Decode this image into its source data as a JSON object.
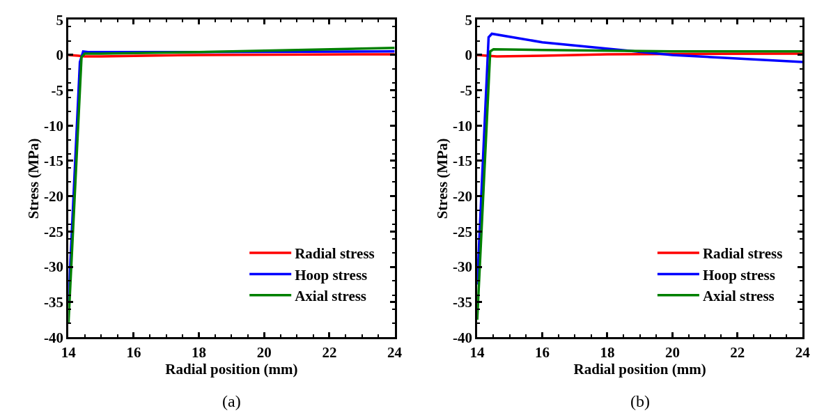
{
  "chart_data": [
    {
      "type": "line",
      "xlabel": "Radial position (mm)",
      "ylabel": "Stress (MPa)",
      "xlim": [
        14,
        24
      ],
      "xticks": [
        14,
        16,
        18,
        20,
        22,
        24
      ],
      "ylim": [
        -40,
        5
      ],
      "yticks": [
        -40,
        -35,
        -30,
        -25,
        -20,
        -15,
        -10,
        -5,
        0,
        5
      ],
      "legend": "bottom right",
      "grid": false,
      "annotations": [
        "(a)"
      ],
      "series": [
        {
          "name": "Radial stress",
          "color": "#ff0000",
          "x": [
            14,
            14.3,
            14.5,
            15,
            18,
            24
          ],
          "values": [
            0,
            -0.1,
            -0.2,
            -0.2,
            0,
            0.1
          ]
        },
        {
          "name": "Hoop stress",
          "color": "#0000ff",
          "x": [
            14,
            14.35,
            14.45,
            14.6,
            18,
            24
          ],
          "values": [
            -35,
            -1,
            0.5,
            0.4,
            0.4,
            0.5
          ]
        },
        {
          "name": "Axial stress",
          "color": "#008000",
          "x": [
            14,
            14.4,
            14.5,
            15,
            18,
            24
          ],
          "values": [
            -38,
            -0.3,
            0.2,
            0.2,
            0.4,
            1.0
          ]
        }
      ]
    },
    {
      "type": "line",
      "xlabel": "Radial position (mm)",
      "ylabel": "Stress (MPa)",
      "xlim": [
        14,
        24
      ],
      "xticks": [
        14,
        16,
        18,
        20,
        22,
        24
      ],
      "ylim": [
        -40,
        5
      ],
      "yticks": [
        -40,
        -35,
        -30,
        -25,
        -20,
        -15,
        -10,
        -5,
        0,
        5
      ],
      "legend": "bottom right",
      "grid": false,
      "annotations": [
        "(b)"
      ],
      "series": [
        {
          "name": "Radial stress",
          "color": "#ff0000",
          "x": [
            14,
            14.3,
            14.6,
            16,
            18,
            24
          ],
          "values": [
            0,
            -0.1,
            -0.2,
            -0.1,
            0.1,
            0.2
          ]
        },
        {
          "name": "Hoop stress",
          "color": "#0000ff",
          "x": [
            14,
            14.35,
            14.45,
            16,
            20,
            24
          ],
          "values": [
            -32.5,
            2.5,
            3.0,
            1.8,
            0,
            -1.0
          ]
        },
        {
          "name": "Axial stress",
          "color": "#008000",
          "x": [
            14,
            14.4,
            14.5,
            16,
            20,
            24
          ],
          "values": [
            -37.5,
            0.5,
            0.8,
            0.7,
            0.5,
            0.5
          ]
        }
      ]
    }
  ]
}
